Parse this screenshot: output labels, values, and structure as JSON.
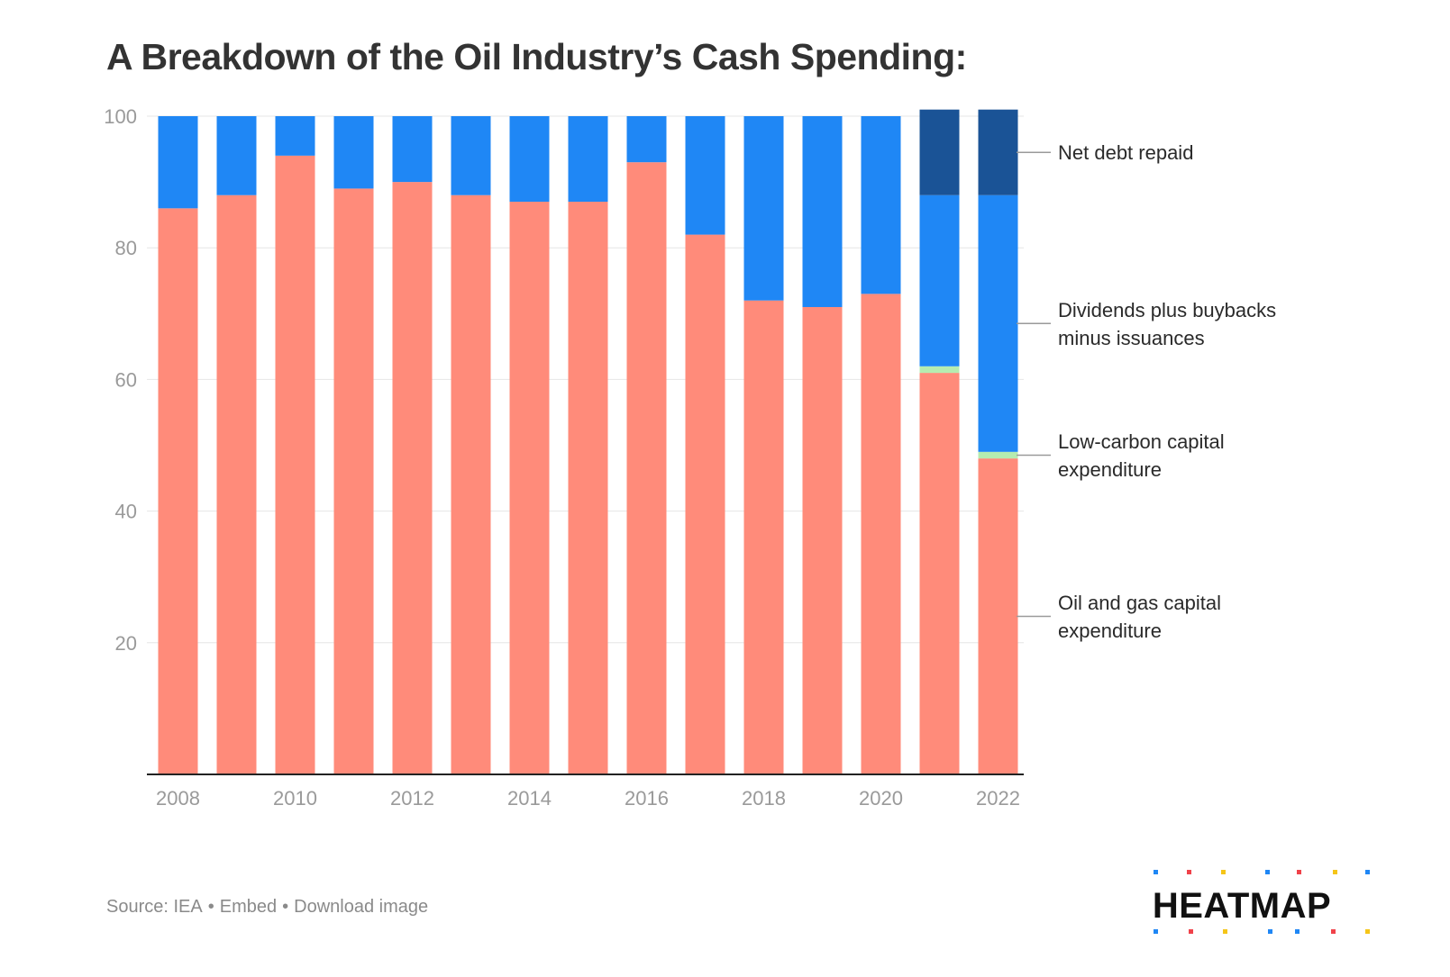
{
  "title": "A Breakdown of the Oil Industry’s Cash Spending:",
  "footer": {
    "source": "Source: IEA",
    "separator": "•",
    "embed": "Embed",
    "download": "Download image"
  },
  "logo": {
    "text": "HEATMAP",
    "dot_colors": [
      "#1f87f5",
      "#f0424a",
      "#f5c518",
      "#1f87f5",
      "#f0424a",
      "#f5c518",
      "#1f87f5"
    ]
  },
  "colors": {
    "oil_gas": "#ff8b7a",
    "low_carbon": "#b6ecb0",
    "dividends": "#1f87f5",
    "net_debt": "#1a5396",
    "grid": "#e6e6e6",
    "axis": "#222222"
  },
  "chart_data": {
    "type": "bar",
    "stacked": true,
    "categories": [
      2008,
      2009,
      2010,
      2011,
      2012,
      2013,
      2014,
      2015,
      2016,
      2017,
      2018,
      2019,
      2020,
      2021,
      2022
    ],
    "x_tick_labels": [
      "2008",
      "2010",
      "2012",
      "2014",
      "2016",
      "2018",
      "2020",
      "2022"
    ],
    "y_ticks": [
      20,
      40,
      60,
      80,
      100
    ],
    "ylim": [
      0,
      100
    ],
    "grid": true,
    "legend_placement": "right",
    "series": [
      {
        "name": "Oil and gas capital expenditure",
        "legend_lines": [
          "Oil and gas capital",
          "expenditure"
        ],
        "color": "#ff8b7a",
        "values": [
          86,
          88,
          94,
          89,
          90,
          88,
          87,
          87,
          93,
          82,
          72,
          71,
          73,
          61,
          48
        ]
      },
      {
        "name": "Low-carbon capital expenditure",
        "legend_lines": [
          "Low-carbon capital",
          "expenditure"
        ],
        "color": "#b6ecb0",
        "values": [
          0,
          0,
          0,
          0,
          0,
          0,
          0,
          0,
          0,
          0,
          0,
          0,
          0,
          1,
          1
        ]
      },
      {
        "name": "Dividends plus buybacks minus issuances",
        "legend_lines": [
          "Dividends plus buybacks",
          "minus issuances"
        ],
        "color": "#1f87f5",
        "values": [
          14,
          12,
          6,
          11,
          10,
          12,
          13,
          13,
          7,
          18,
          28,
          29,
          27,
          26,
          39
        ]
      },
      {
        "name": "Net debt repaid",
        "legend_lines": [
          "Net debt repaid"
        ],
        "color": "#1a5396",
        "values": [
          0,
          0,
          0,
          0,
          0,
          0,
          0,
          0,
          0,
          0,
          0,
          0,
          0,
          13,
          13
        ]
      }
    ]
  }
}
